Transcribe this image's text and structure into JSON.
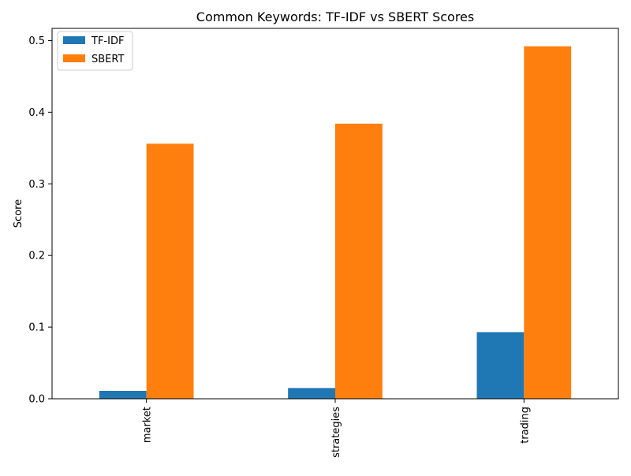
{
  "chart_data": {
    "type": "bar",
    "title": "Common Keywords: TF-IDF vs SBERT Scores",
    "xlabel": "",
    "ylabel": "Score",
    "categories": [
      "market",
      "strategies",
      "trading"
    ],
    "series": [
      {
        "name": "TF-IDF",
        "color": "#1f77b4",
        "values": [
          0.011,
          0.015,
          0.093
        ]
      },
      {
        "name": "SBERT",
        "color": "#ff7f0e",
        "values": [
          0.356,
          0.384,
          0.492
        ]
      }
    ],
    "ylim": [
      0,
      0.517
    ],
    "yticks": [
      "0.0",
      "0.1",
      "0.2",
      "0.3",
      "0.4",
      "0.5"
    ],
    "grid": false,
    "legend_position": "top-left"
  }
}
